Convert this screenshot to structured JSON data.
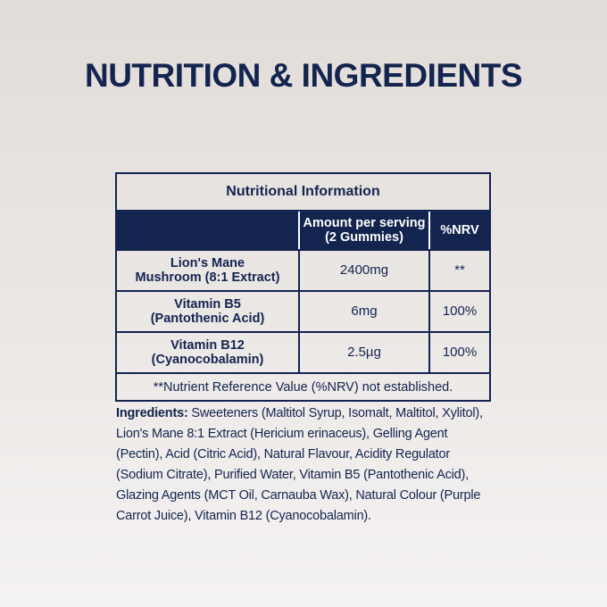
{
  "title": "NUTRITION & INGREDIENTS",
  "table": {
    "caption": "Nutritional Information",
    "headers": [
      "",
      "Amount per serving\n(2 Gummies)",
      "%NRV"
    ],
    "header_amount_line1": "Amount per serving",
    "header_amount_line2": "(2 Gummies)",
    "header_nrv": "%NRV",
    "rows": [
      {
        "name1": "Lion's Mane",
        "name2": "Mushroom (8:1 Extract)",
        "amount": "2400mg",
        "nrv": "**"
      },
      {
        "name1": "Vitamin B5",
        "name2": "(Pantothenic Acid)",
        "amount": "6mg",
        "nrv": "100%"
      },
      {
        "name1": "Vitamin B12",
        "name2": "(Cyanocobalamin)",
        "amount": "2.5µg",
        "nrv": "100%"
      }
    ],
    "footnote": "**Nutrient Reference Value (%NRV) not established."
  },
  "ingredients": {
    "label": "Ingredients:",
    "text": " Sweeteners (Maltitol Syrup, Isomalt, Maltitol, Xylitol), Lion's Mane 8:1 Extract (Hericium erinaceus), Gelling Agent (Pectin), Acid (Citric Acid), Natural Flavour, Acidity Regulator (Sodium Citrate), Purified Water, Vitamin B5 (Pantothenic Acid), Glazing Agents (MCT Oil, Carnauba Wax), Natural Colour (Purple Carrot Juice), Vitamin B12 (Cyanocobalamin)."
  },
  "colors": {
    "navy": "#13244f",
    "background": "#e8e3e0"
  }
}
